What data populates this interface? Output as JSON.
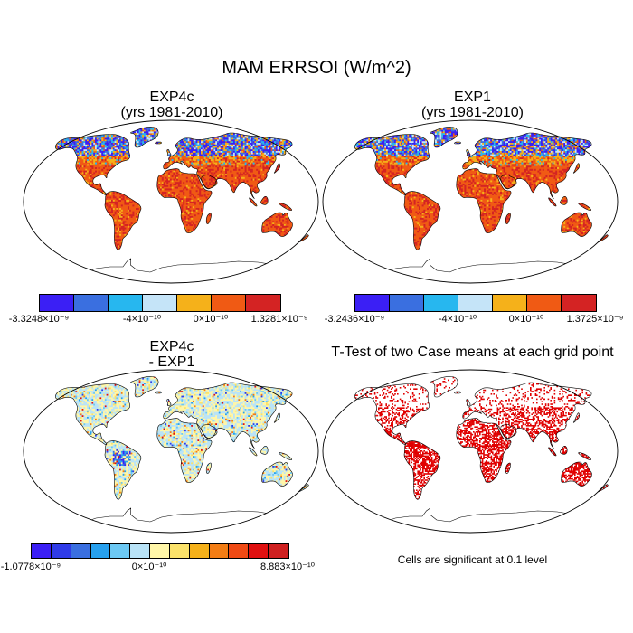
{
  "title": "MAM ERRSOI (W/m^2)",
  "panels": [
    {
      "id": "exp4c",
      "title_line1": "EXP4c",
      "title_line2": "(yrs 1981-2010)",
      "colorbar": {
        "colors": [
          "#3b1ff5",
          "#3a6fe0",
          "#27b7ef",
          "#c5e4f8",
          "#f5b11a",
          "#f05a14",
          "#d42323"
        ],
        "labels": [
          "-3.3248×10⁻⁹",
          "-4×10⁻¹⁰",
          "0×10⁻¹⁰",
          "1.3281×10⁻⁹"
        ]
      }
    },
    {
      "id": "exp1",
      "title_line1": "EXP1",
      "title_line2": "(yrs 1981-2010)",
      "colorbar": {
        "colors": [
          "#3b1ff5",
          "#3a6fe0",
          "#27b7ef",
          "#c5e4f8",
          "#f5b11a",
          "#f05a14",
          "#d42323"
        ],
        "labels": [
          "-3.2436×10⁻⁹",
          "-4×10⁻¹⁰",
          "0×10⁻¹⁰",
          "1.3725×10⁻⁹"
        ]
      }
    },
    {
      "id": "diff",
      "title_line1": "EXP4c",
      "title_line2": "- EXP1",
      "colorbar": {
        "colors": [
          "#3b1ff5",
          "#2f3be8",
          "#3a6fe0",
          "#27a0ee",
          "#6cc8f3",
          "#b9e3f7",
          "#fff6a8",
          "#fbe26a",
          "#f5b11a",
          "#f37d14",
          "#f04a14",
          "#e01010",
          "#cf2020"
        ],
        "labels": [
          "-1.0778×10⁻⁹",
          "0×10⁻¹⁰",
          "8.883×10⁻¹⁰"
        ]
      }
    },
    {
      "id": "ttest",
      "title_line1": "T-Test of two Case means at each grid point",
      "note": "Cells are significant at 0.1 level",
      "significant_color": "#e00000"
    }
  ]
}
